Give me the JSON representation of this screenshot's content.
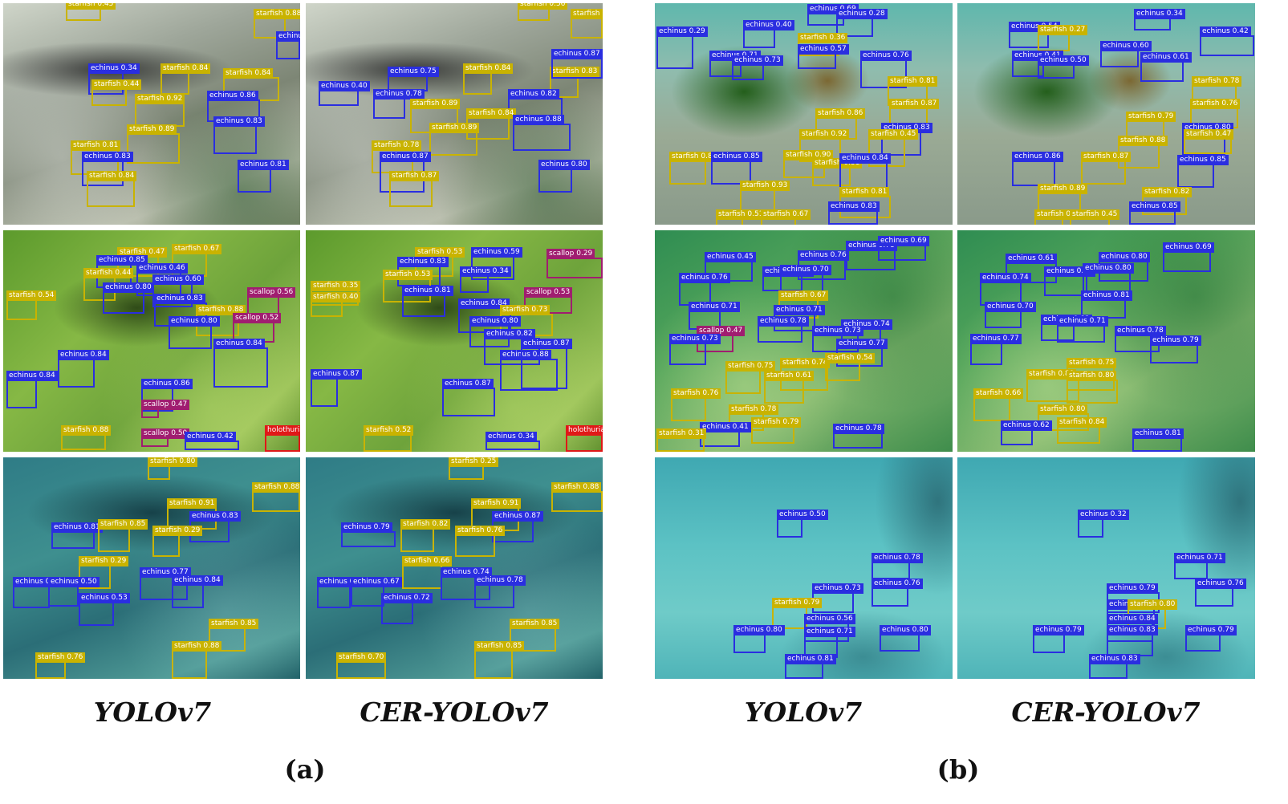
{
  "colors": {
    "echinus": "#2a2ee0",
    "starfish": "#c9b300",
    "scallop": "#a01d70",
    "holothurian": "#e01818"
  },
  "captions": [
    "YOLOv7",
    "CER-YOLOv7",
    "YOLOv7",
    "CER-YOLOv7"
  ],
  "sublabels": [
    "(a)",
    "(b)"
  ],
  "panels": [
    {
      "name": "a-row1-yolov7",
      "detections": [
        {
          "label": "starfish 0.45"
        },
        {
          "label": "starfish 0.88"
        },
        {
          "label": "echinus 0.83"
        },
        {
          "label": "echinus 0.34"
        },
        {
          "label": "starfish 0.84"
        },
        {
          "label": "starfish 0.84"
        },
        {
          "label": "starfish 0.44"
        },
        {
          "label": "starfish 0.92"
        },
        {
          "label": "echinus 0.86"
        },
        {
          "label": "starfish 0.89"
        },
        {
          "label": "echinus 0.83"
        },
        {
          "label": "starfish 0.81"
        },
        {
          "label": "echinus 0.83"
        },
        {
          "label": "echinus 0.81"
        },
        {
          "label": "starfish 0.84"
        }
      ]
    },
    {
      "name": "a-row1-cer",
      "detections": [
        {
          "label": "starfish 0.56"
        },
        {
          "label": "starfish 0.84"
        },
        {
          "label": "echinus 0.75"
        },
        {
          "label": "starfish 0.84"
        },
        {
          "label": "starfish 0.83"
        },
        {
          "label": "echinus 0.87"
        },
        {
          "label": "echinus 0.40"
        },
        {
          "label": "echinus 0.78"
        },
        {
          "label": "echinus 0.82"
        },
        {
          "label": "starfish 0.89"
        },
        {
          "label": "starfish 0.84"
        },
        {
          "label": "starfish 0.89"
        },
        {
          "label": "echinus 0.88"
        },
        {
          "label": "starfish 0.78"
        },
        {
          "label": "echinus 0.87"
        },
        {
          "label": "starfish 0.87"
        },
        {
          "label": "echinus 0.80"
        }
      ]
    },
    {
      "name": "a-row2-yolov7",
      "detections": [
        {
          "label": "starfish 0.47"
        },
        {
          "label": "starfish 0.67"
        },
        {
          "label": "echinus 0.85"
        },
        {
          "label": "echinus 0.46"
        },
        {
          "label": "starfish 0.44"
        },
        {
          "label": "echinus 0.60"
        },
        {
          "label": "starfish 0.54"
        },
        {
          "label": "echinus 0.80"
        },
        {
          "label": "scallop 0.56"
        },
        {
          "label": "echinus 0.83"
        },
        {
          "label": "starfish 0.88"
        },
        {
          "label": "echinus 0.80"
        },
        {
          "label": "scallop 0.52"
        },
        {
          "label": "echinus 0.84"
        },
        {
          "label": "echinus 0.84"
        },
        {
          "label": "echinus 0.84"
        },
        {
          "label": "echinus 0.86"
        },
        {
          "label": "scallop 0.47"
        },
        {
          "label": "starfish 0.88"
        },
        {
          "label": "scallop 0.50"
        },
        {
          "label": "echinus 0.42"
        },
        {
          "label": "holothurian"
        }
      ]
    },
    {
      "name": "a-row2-cer",
      "detections": [
        {
          "label": "starfish 0.53"
        },
        {
          "label": "echinus 0.59"
        },
        {
          "label": "scallop 0.29"
        },
        {
          "label": "echinus 0.83"
        },
        {
          "label": "starfish 0.53"
        },
        {
          "label": "echinus 0.34"
        },
        {
          "label": "starfish 0.35"
        },
        {
          "label": "starfish 0.40"
        },
        {
          "label": "echinus 0.81"
        },
        {
          "label": "echinus 0.84"
        },
        {
          "label": "scallop 0.53"
        },
        {
          "label": "starfish 0.73"
        },
        {
          "label": "echinus 0.80"
        },
        {
          "label": "echinus 0.82"
        },
        {
          "label": "echinus 0.88"
        },
        {
          "label": "echinus 0.87"
        },
        {
          "label": "echinus 0.87"
        },
        {
          "label": "echinus 0.87"
        },
        {
          "label": "starfish 0.52"
        },
        {
          "label": "echinus 0.34"
        },
        {
          "label": "holothurian"
        }
      ]
    },
    {
      "name": "a-row3-yolov7",
      "detections": [
        {
          "label": "starfish 0.80"
        },
        {
          "label": "starfish 0.88"
        },
        {
          "label": "starfish 0.91"
        },
        {
          "label": "echinus 0.83"
        },
        {
          "label": "echinus 0.81"
        },
        {
          "label": "starfish 0.85"
        },
        {
          "label": "starfish 0.29"
        },
        {
          "label": "starfish 0.29"
        },
        {
          "label": "echinus 0.77"
        },
        {
          "label": "echinus 0.78"
        },
        {
          "label": "echinus 0.50"
        },
        {
          "label": "echinus 0.84"
        },
        {
          "label": "echinus 0.53"
        },
        {
          "label": "starfish 0.85"
        },
        {
          "label": "starfish 0.88"
        },
        {
          "label": "starfish 0.76"
        }
      ]
    },
    {
      "name": "a-row3-cer",
      "detections": [
        {
          "label": "starfish 0.25"
        },
        {
          "label": "starfish 0.88"
        },
        {
          "label": "starfish 0.91"
        },
        {
          "label": "echinus 0.87"
        },
        {
          "label": "echinus 0.79"
        },
        {
          "label": "starfish 0.82"
        },
        {
          "label": "starfish 0.76"
        },
        {
          "label": "starfish 0.66"
        },
        {
          "label": "echinus 0.74"
        },
        {
          "label": "echinus 0.78"
        },
        {
          "label": "echinus 0.67"
        },
        {
          "label": "echinus 0.78"
        },
        {
          "label": "echinus 0.72"
        },
        {
          "label": "starfish 0.85"
        },
        {
          "label": "starfish 0.85"
        },
        {
          "label": "starfish 0.70"
        }
      ]
    },
    {
      "name": "b-row1-yolov7",
      "detections": [
        {
          "label": "echinus 0.69"
        },
        {
          "label": "echinus 0.28"
        },
        {
          "label": "echinus 0.29"
        },
        {
          "label": "echinus 0.40"
        },
        {
          "label": "starfish 0.36"
        },
        {
          "label": "echinus 0.71"
        },
        {
          "label": "echinus 0.73"
        },
        {
          "label": "echinus 0.57"
        },
        {
          "label": "echinus 0.76"
        },
        {
          "label": "starfish 0.81"
        },
        {
          "label": "starfish 0.87"
        },
        {
          "label": "starfish 0.86"
        },
        {
          "label": "echinus 0.83"
        },
        {
          "label": "starfish 0.92"
        },
        {
          "label": "starfish 0.45"
        },
        {
          "label": "starfish 0.88"
        },
        {
          "label": "echinus 0.85"
        },
        {
          "label": "starfish 0.90"
        },
        {
          "label": "starfish 0.31"
        },
        {
          "label": "echinus 0.84"
        },
        {
          "label": "starfish 0.93"
        },
        {
          "label": "starfish 0.81"
        },
        {
          "label": "starfish 0.51"
        },
        {
          "label": "starfish 0.67"
        },
        {
          "label": "echinus 0.83"
        }
      ]
    },
    {
      "name": "b-row1-cer",
      "detections": [
        {
          "label": "echinus 0.34"
        },
        {
          "label": "echinus 0.54"
        },
        {
          "label": "starfish 0.27"
        },
        {
          "label": "echinus 0.42"
        },
        {
          "label": "echinus 0.41"
        },
        {
          "label": "echinus 0.60"
        },
        {
          "label": "echinus 0.50"
        },
        {
          "label": "echinus 0.61"
        },
        {
          "label": "starfish 0.78"
        },
        {
          "label": "starfish 0.76"
        },
        {
          "label": "starfish 0.79"
        },
        {
          "label": "echinus 0.80"
        },
        {
          "label": "starfish 0.88"
        },
        {
          "label": "starfish 0.47"
        },
        {
          "label": "echinus 0.86"
        },
        {
          "label": "starfish 0.87"
        },
        {
          "label": "echinus 0.85"
        },
        {
          "label": "starfish 0.89"
        },
        {
          "label": "starfish 0.82"
        },
        {
          "label": "starfish 0.51"
        },
        {
          "label": "starfish 0.45"
        },
        {
          "label": "echinus 0.85"
        }
      ]
    },
    {
      "name": "b-row2-yolov7",
      "detections": [
        {
          "label": "echinus 0.78"
        },
        {
          "label": "echinus 0.69"
        },
        {
          "label": "echinus 0.45"
        },
        {
          "label": "echinus 0.76"
        },
        {
          "label": "echinus 0.79"
        },
        {
          "label": "echinus 0.70"
        },
        {
          "label": "echinus 0.76"
        },
        {
          "label": "echinus 0.71"
        },
        {
          "label": "starfish 0.67"
        },
        {
          "label": "echinus 0.71"
        },
        {
          "label": "echinus 0.78"
        },
        {
          "label": "scallop 0.47"
        },
        {
          "label": "echinus 0.74"
        },
        {
          "label": "echinus 0.73"
        },
        {
          "label": "echinus 0.73"
        },
        {
          "label": "echinus 0.77"
        },
        {
          "label": "starfish 0.75"
        },
        {
          "label": "starfish 0.74"
        },
        {
          "label": "starfish 0.54"
        },
        {
          "label": "starfish 0.61"
        },
        {
          "label": "starfish 0.76"
        },
        {
          "label": "starfish 0.78"
        },
        {
          "label": "starfish 0.79"
        },
        {
          "label": "echinus 0.41"
        },
        {
          "label": "starfish 0.31"
        },
        {
          "label": "echinus 0.78"
        }
      ]
    },
    {
      "name": "b-row2-cer",
      "detections": [
        {
          "label": "echinus 0.69"
        },
        {
          "label": "echinus 0.61"
        },
        {
          "label": "echinus 0.80"
        },
        {
          "label": "echinus 0.74"
        },
        {
          "label": "echinus 0.78"
        },
        {
          "label": "echinus 0.80"
        },
        {
          "label": "echinus 0.81"
        },
        {
          "label": "echinus 0.70"
        },
        {
          "label": "echinus 0.82"
        },
        {
          "label": "echinus 0.71"
        },
        {
          "label": "echinus 0.78"
        },
        {
          "label": "echinus 0.77"
        },
        {
          "label": "echinus 0.79"
        },
        {
          "label": "starfish 0.75"
        },
        {
          "label": "starfish 0.80"
        },
        {
          "label": "starfish 0.80"
        },
        {
          "label": "starfish 0.66"
        },
        {
          "label": "starfish 0.80"
        },
        {
          "label": "starfish 0.84"
        },
        {
          "label": "echinus 0.62"
        },
        {
          "label": "echinus 0.81"
        }
      ]
    },
    {
      "name": "b-row3-yolov7",
      "detections": [
        {
          "label": "echinus 0.50"
        },
        {
          "label": "echinus 0.78"
        },
        {
          "label": "echinus 0.73"
        },
        {
          "label": "starfish 0.79"
        },
        {
          "label": "echinus 0.76"
        },
        {
          "label": "echinus 0.56"
        },
        {
          "label": "echinus 0.71"
        },
        {
          "label": "echinus 0.80"
        },
        {
          "label": "echinus 0.80"
        },
        {
          "label": "echinus 0.81"
        }
      ]
    },
    {
      "name": "b-row3-cer",
      "detections": [
        {
          "label": "echinus 0.32"
        },
        {
          "label": "echinus 0.71"
        },
        {
          "label": "echinus 0.79"
        },
        {
          "label": "echinus 0.76"
        },
        {
          "label": "echinus 0.82"
        },
        {
          "label": "starfish 0.80"
        },
        {
          "label": "echinus 0.84"
        },
        {
          "label": "echinus 0.83"
        },
        {
          "label": "echinus 0.79"
        },
        {
          "label": "echinus 0.79"
        },
        {
          "label": "echinus 0.83"
        }
      ]
    }
  ]
}
